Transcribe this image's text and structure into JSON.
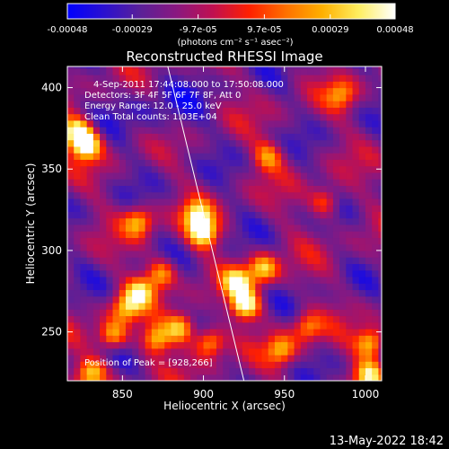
{
  "chart_data": {
    "type": "heatmap",
    "title": "Reconstructed RHESSI Image",
    "xlabel": "Heliocentric X (arcsec)",
    "ylabel": "Heliocentric Y (arcsec)",
    "xlim": [
      816,
      1010
    ],
    "ylim": [
      220,
      413
    ],
    "x_ticks": [
      850,
      900,
      950,
      1000
    ],
    "y_ticks": [
      250,
      300,
      350,
      400
    ],
    "colorbar": {
      "ticks": [
        "-0.00048",
        "-0.00029",
        "-9.7e-05",
        "9.7e-05",
        "0.00029",
        "0.00048"
      ],
      "range": [
        -0.00048,
        0.00048
      ],
      "units_line": "(photons cm⁻² s⁻¹ asec⁻²)",
      "colors": [
        "#0000ff",
        "#2a10d0",
        "#5a2098",
        "#8a1880",
        "#c01050",
        "#ff2000",
        "#ff7000",
        "#ffb000",
        "#ffee60",
        "#ffffff"
      ]
    },
    "annotations": [
      "4-Sep-2011 17:44:08.000 to 17:50:08.000",
      "Detectors: 3F 4F 5F 6F 7F 8F, Att 0",
      "Energy Range: 12.0 - 25.0 keV",
      "Clean     Total counts: 1.03E+04"
    ],
    "peak_label": "Position of Peak = [928,266]",
    "peak": [
      928,
      266
    ],
    "limb_line": [
      [
        878,
        413
      ],
      [
        925,
        220
      ]
    ],
    "hot_sources": [
      {
        "x": 822,
        "y": 373,
        "value": 0.00045
      },
      {
        "x": 828,
        "y": 365,
        "value": 0.00044
      },
      {
        "x": 900,
        "y": 311,
        "value": 0.00046
      },
      {
        "x": 896,
        "y": 322,
        "value": 0.0003
      },
      {
        "x": 926,
        "y": 267,
        "value": 0.00048
      },
      {
        "x": 921,
        "y": 281,
        "value": 0.00035
      },
      {
        "x": 937,
        "y": 289,
        "value": 0.00033
      },
      {
        "x": 874,
        "y": 286,
        "value": 0.00028
      },
      {
        "x": 861,
        "y": 275,
        "value": 0.0003
      },
      {
        "x": 886,
        "y": 253,
        "value": 0.00036
      },
      {
        "x": 904,
        "y": 244,
        "value": 0.00031
      },
      {
        "x": 871,
        "y": 246,
        "value": 0.0003
      },
      {
        "x": 844,
        "y": 248,
        "value": 0.00029
      },
      {
        "x": 852,
        "y": 265,
        "value": 0.00026
      },
      {
        "x": 831,
        "y": 225,
        "value": 0.00032
      },
      {
        "x": 948,
        "y": 239,
        "value": 0.00024
      },
      {
        "x": 964,
        "y": 253,
        "value": 0.0002
      },
      {
        "x": 1003,
        "y": 243,
        "value": 0.00034
      },
      {
        "x": 1002,
        "y": 224,
        "value": 0.00036
      },
      {
        "x": 975,
        "y": 330,
        "value": 0.00018
      },
      {
        "x": 985,
        "y": 396,
        "value": 0.00016
      },
      {
        "x": 940,
        "y": 358,
        "value": 0.0002
      },
      {
        "x": 860,
        "y": 318,
        "value": 0.00028
      }
    ]
  },
  "footer": {
    "timestamp": "13-May-2022 18:42"
  }
}
